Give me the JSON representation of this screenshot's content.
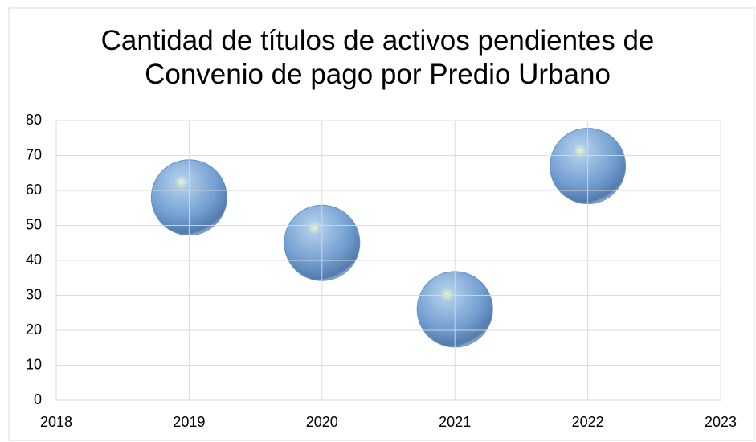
{
  "chart_data": {
    "type": "scatter",
    "title": "Cantidad de títulos de activos pendientes de Convenio de pago por Predio Urbano",
    "x": [
      2019,
      2020,
      2021,
      2022
    ],
    "series": [
      {
        "values": [
          58,
          45,
          26,
          67
        ],
        "color": "#5b8cc8"
      }
    ],
    "xlim": [
      2018,
      2023
    ],
    "xticks": [
      2018,
      2019,
      2020,
      2021,
      2022,
      2023
    ],
    "ylim": [
      0,
      80
    ],
    "yticks": [
      0,
      10,
      20,
      30,
      40,
      50,
      60,
      70,
      80
    ],
    "grid": true
  }
}
